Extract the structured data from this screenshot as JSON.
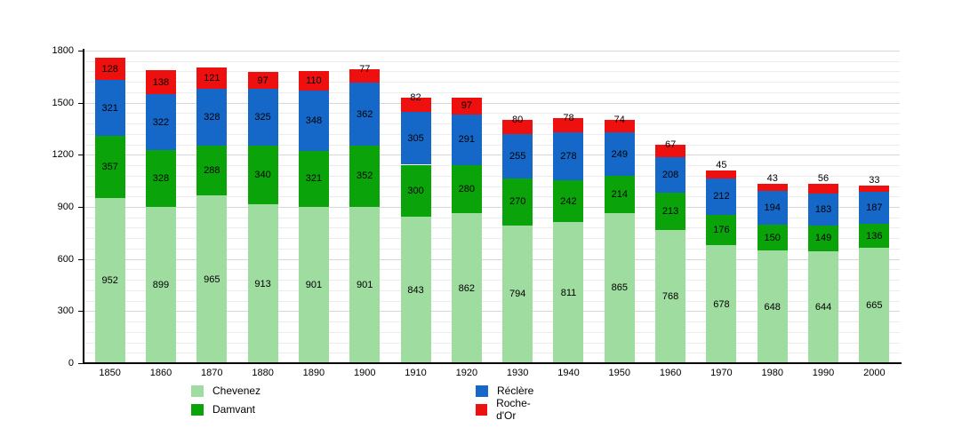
{
  "chart_data": {
    "type": "bar",
    "stacked": true,
    "title": "",
    "xlabel": "",
    "ylabel": "",
    "categories": [
      "1850",
      "1860",
      "1870",
      "1880",
      "1890",
      "1900",
      "1910",
      "1920",
      "1930",
      "1940",
      "1950",
      "1960",
      "1970",
      "1980",
      "1990",
      "2000"
    ],
    "series": [
      {
        "name": "Chevenez",
        "color": "#9fdc9f",
        "values": [
          952,
          899,
          965,
          913,
          901,
          901,
          843,
          862,
          794,
          811,
          865,
          768,
          678,
          648,
          644,
          665
        ]
      },
      {
        "name": "Damvant",
        "color": "#0aa40a",
        "values": [
          357,
          328,
          288,
          340,
          321,
          352,
          300,
          280,
          270,
          242,
          214,
          213,
          176,
          150,
          149,
          136
        ]
      },
      {
        "name": "Réclère",
        "color": "#1668c8",
        "values": [
          321,
          322,
          328,
          325,
          348,
          362,
          305,
          291,
          255,
          278,
          249,
          208,
          212,
          194,
          183,
          187
        ]
      },
      {
        "name": "Roche-d'Or",
        "color": "#ee0f0f",
        "values": [
          128,
          138,
          121,
          97,
          110,
          77,
          82,
          97,
          80,
          78,
          74,
          67,
          45,
          43,
          56,
          33
        ]
      }
    ],
    "ylim": [
      0,
      1800
    ],
    "yticks": [
      0,
      300,
      600,
      900,
      1200,
      1500,
      1800
    ],
    "minor_grid_step": 60,
    "grid": true,
    "legend_position": "bottom",
    "legend_columns": [
      [
        "Chevenez",
        "Damvant"
      ],
      [
        "Réclère",
        "Roche-d'Or"
      ]
    ],
    "axis_color": "#000000",
    "minor_grid_color": "#ececec",
    "major_grid_color": "#d7d7d7"
  }
}
